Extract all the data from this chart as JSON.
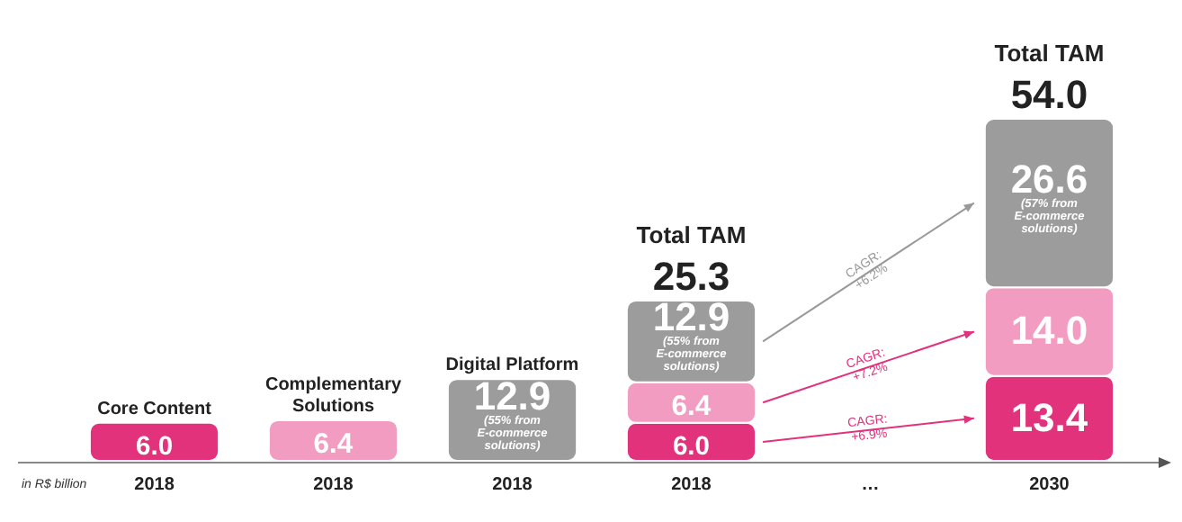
{
  "chart_data": {
    "type": "bar",
    "stacked": true,
    "legend": false,
    "categories": [
      "2018",
      "2018",
      "2018",
      "2018",
      "…",
      "2030"
    ],
    "series": [
      {
        "name": "Core Content",
        "color": "#e2327c",
        "values": [
          6.0,
          null,
          null,
          6.0,
          null,
          13.4
        ],
        "value_labels": [
          "6.0",
          null,
          null,
          "6.0",
          null,
          "13.4"
        ]
      },
      {
        "name": "Complementary Solutions",
        "color": "#f29cc2",
        "values": [
          null,
          6.4,
          null,
          6.4,
          null,
          14.0
        ],
        "value_labels": [
          null,
          "6.4",
          null,
          "6.4",
          null,
          "14.0"
        ]
      },
      {
        "name": "Digital Platform",
        "color": "#9c9c9c",
        "values": [
          null,
          null,
          12.9,
          12.9,
          null,
          26.6
        ],
        "value_labels": [
          null,
          null,
          "12.9",
          "12.9",
          null,
          "26.6"
        ]
      }
    ],
    "totals": [
      null,
      null,
      null,
      "25.3",
      null,
      "54.0"
    ],
    "annotations": [
      "Total TAM",
      "Total TAM",
      "(55% from E-commerce solutions)",
      "(55% from E-commerce solutions)",
      "(57% from E-commerce solutions)",
      "CAGR: +6.9%",
      "CAGR: +7.2%",
      "CAGR: +6.2%",
      "in R$ billion"
    ]
  }
}
